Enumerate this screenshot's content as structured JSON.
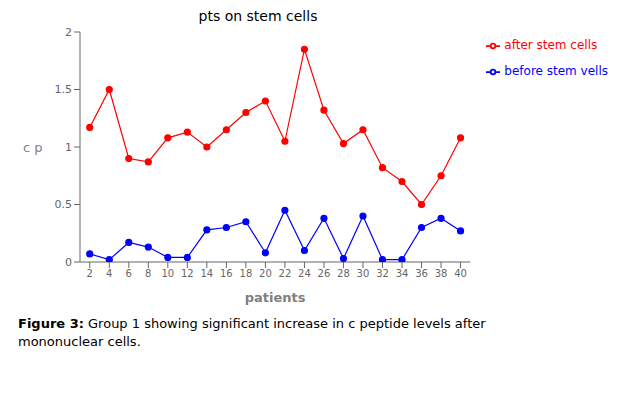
{
  "chart_data": {
    "type": "line",
    "title": "pts on stem cells",
    "x_label": "patients",
    "y_label": "c p",
    "x": [
      2,
      4,
      6,
      8,
      10,
      12,
      14,
      16,
      18,
      20,
      22,
      24,
      26,
      28,
      30,
      32,
      34,
      36,
      38,
      40
    ],
    "series": [
      {
        "name": "before stem  vells",
        "color": "#0000ff",
        "marker": "circle",
        "values": [
          0.07,
          0.02,
          0.17,
          0.13,
          0.04,
          0.04,
          0.28,
          0.3,
          0.35,
          0.08,
          0.45,
          0.1,
          0.38,
          0.03,
          0.4,
          0.02,
          0.02,
          0.3,
          0.38,
          0.27
        ]
      },
      {
        "name": "after stem cells",
        "color": "#ff0000",
        "marker": "circle",
        "values": [
          1.17,
          1.5,
          0.9,
          0.87,
          1.08,
          1.13,
          1.0,
          1.15,
          1.3,
          1.4,
          1.05,
          1.85,
          1.32,
          1.03,
          1.15,
          0.82,
          0.7,
          0.5,
          0.75,
          1.08
        ]
      }
    ],
    "xlim": [
      1,
      41
    ],
    "xticks": [
      2,
      4,
      6,
      8,
      10,
      12,
      14,
      16,
      18,
      20,
      22,
      24,
      26,
      28,
      30,
      32,
      34,
      36,
      38,
      40
    ],
    "ylim": [
      0.0,
      2.0
    ],
    "yticks": [
      0.0,
      0.5,
      1.0,
      1.5,
      2.0
    ],
    "grid": false,
    "legend": "upper right",
    "annotations": [
      "Figure 3:",
      " Group 1 showing significant increase in c peptide levels after\nmononuclear cells."
    ]
  }
}
